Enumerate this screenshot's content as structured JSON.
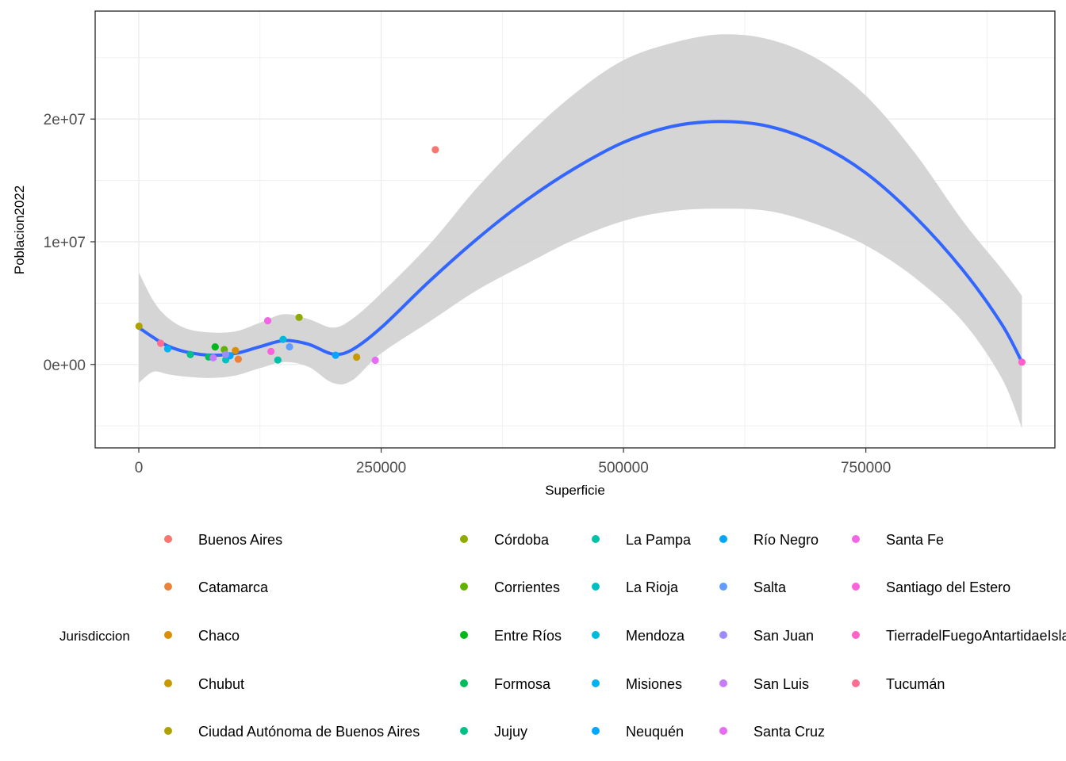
{
  "chart_data": {
    "type": "scatter",
    "xlabel": "Superficie",
    "ylabel": "Poblacion2022",
    "xlim": [
      -45000,
      945000
    ],
    "ylim": [
      -6800000,
      28800000
    ],
    "x_ticks": [
      0,
      250000,
      500000,
      750000
    ],
    "x_tick_labels": [
      "0",
      "250000",
      "500000",
      "750000"
    ],
    "y_ticks": [
      0,
      10000000,
      20000000
    ],
    "y_tick_labels": [
      "0e+00",
      "1e+07",
      "2e+07"
    ],
    "grid": true,
    "legend_title": "Jurisdiccion",
    "legend_position": "bottom",
    "smooth_color": "#3366FF",
    "band_color": "#D3D3D3",
    "series": [
      {
        "name": "Buenos Aires",
        "color": "#F8766D",
        "x": 305907,
        "y": 17500000
      },
      {
        "name": "Catamarca",
        "color": "#EC8239",
        "x": 102602,
        "y": 430000
      },
      {
        "name": "Chaco",
        "color": "#DB8E00",
        "x": 99633,
        "y": 1130000
      },
      {
        "name": "Chubut",
        "color": "#C79800",
        "x": 224686,
        "y": 600000
      },
      {
        "name": "Ciudad Autónoma de Buenos Aires",
        "color": "#AEA200",
        "x": 200,
        "y": 3120000
      },
      {
        "name": "Córdoba",
        "color": "#8FAA00",
        "x": 165321,
        "y": 3840000
      },
      {
        "name": "Corrientes",
        "color": "#64B200",
        "x": 88199,
        "y": 1210000
      },
      {
        "name": "Entre Ríos",
        "color": "#00B81B",
        "x": 78781,
        "y": 1430000
      },
      {
        "name": "Formosa",
        "color": "#00BD5C",
        "x": 72066,
        "y": 610000
      },
      {
        "name": "Jujuy",
        "color": "#00C085",
        "x": 53219,
        "y": 810000
      },
      {
        "name": "La Pampa",
        "color": "#00C1A7",
        "x": 143440,
        "y": 360000
      },
      {
        "name": "La Rioja",
        "color": "#00BFC4",
        "x": 89680,
        "y": 380000
      },
      {
        "name": "Mendoza",
        "color": "#00BADE",
        "x": 148827,
        "y": 2040000
      },
      {
        "name": "Misiones",
        "color": "#00B2F3",
        "x": 29801,
        "y": 1280000
      },
      {
        "name": "Neuquén",
        "color": "#00A6FF",
        "x": 94078,
        "y": 710000
      },
      {
        "name": "Río Negro",
        "color": "#00A6FF",
        "x": 203013,
        "y": 750000
      },
      {
        "name": "Salta",
        "color": "#619CFF",
        "x": 155488,
        "y": 1440000
      },
      {
        "name": "San Juan",
        "color": "#9D8CFF",
        "x": 89651,
        "y": 820000
      },
      {
        "name": "San Luis",
        "color": "#C77CFF",
        "x": 76748,
        "y": 540000
      },
      {
        "name": "Santa Cruz",
        "color": "#E76BF3",
        "x": 243943,
        "y": 340000
      },
      {
        "name": "Santa Fe",
        "color": "#F265E7",
        "x": 133007,
        "y": 3560000
      },
      {
        "name": "Santiago del Estero",
        "color": "#FA62DB",
        "x": 136351,
        "y": 1060000
      },
      {
        "name": "TierradelFuegoAntartidaeIslas",
        "color": "#FF61C9",
        "x": 911000,
        "y": 190000
      },
      {
        "name": "Tucumán",
        "color": "#FF6C91",
        "x": 22524,
        "y": 1730000
      }
    ],
    "smooth": [
      {
        "x": 0,
        "y": 3000000,
        "lo": -1500000,
        "hi": 7500000
      },
      {
        "x": 15000,
        "y": 2200000,
        "lo": -600000,
        "hi": 5200000
      },
      {
        "x": 30000,
        "y": 1500000,
        "lo": -800000,
        "hi": 3800000
      },
      {
        "x": 50000,
        "y": 1000000,
        "lo": -1000000,
        "hi": 2900000
      },
      {
        "x": 75000,
        "y": 750000,
        "lo": -1100000,
        "hi": 2600000
      },
      {
        "x": 100000,
        "y": 900000,
        "lo": -900000,
        "hi": 2700000
      },
      {
        "x": 125000,
        "y": 1450000,
        "lo": -300000,
        "hi": 3400000
      },
      {
        "x": 150000,
        "y": 1950000,
        "lo": 200000,
        "hi": 4100000
      },
      {
        "x": 175000,
        "y": 1650000,
        "lo": -200000,
        "hi": 3700000
      },
      {
        "x": 200000,
        "y": 850000,
        "lo": -1500000,
        "hi": 3000000
      },
      {
        "x": 220000,
        "y": 1200000,
        "lo": -1300000,
        "hi": 3700000
      },
      {
        "x": 250000,
        "y": 3000000,
        "lo": 900000,
        "hi": 5800000
      },
      {
        "x": 300000,
        "y": 6800000,
        "lo": 3500000,
        "hi": 9800000
      },
      {
        "x": 350000,
        "y": 10300000,
        "lo": 6100000,
        "hi": 14500000
      },
      {
        "x": 400000,
        "y": 13400000,
        "lo": 8200000,
        "hi": 18600000
      },
      {
        "x": 450000,
        "y": 16000000,
        "lo": 10200000,
        "hi": 22100000
      },
      {
        "x": 500000,
        "y": 18100000,
        "lo": 11700000,
        "hi": 24800000
      },
      {
        "x": 550000,
        "y": 19400000,
        "lo": 12500000,
        "hi": 26200000
      },
      {
        "x": 600000,
        "y": 19800000,
        "lo": 12700000,
        "hi": 26900000
      },
      {
        "x": 650000,
        "y": 19400000,
        "lo": 12500000,
        "hi": 26500000
      },
      {
        "x": 700000,
        "y": 18000000,
        "lo": 11400000,
        "hi": 24900000
      },
      {
        "x": 750000,
        "y": 15600000,
        "lo": 9700000,
        "hi": 21900000
      },
      {
        "x": 800000,
        "y": 12100000,
        "lo": 7100000,
        "hi": 17300000
      },
      {
        "x": 850000,
        "y": 7700000,
        "lo": 3500000,
        "hi": 11700000
      },
      {
        "x": 890000,
        "y": 3300000,
        "lo": -1100000,
        "hi": 7800000
      },
      {
        "x": 911000,
        "y": 190000,
        "lo": -5200000,
        "hi": 5600000
      }
    ]
  }
}
